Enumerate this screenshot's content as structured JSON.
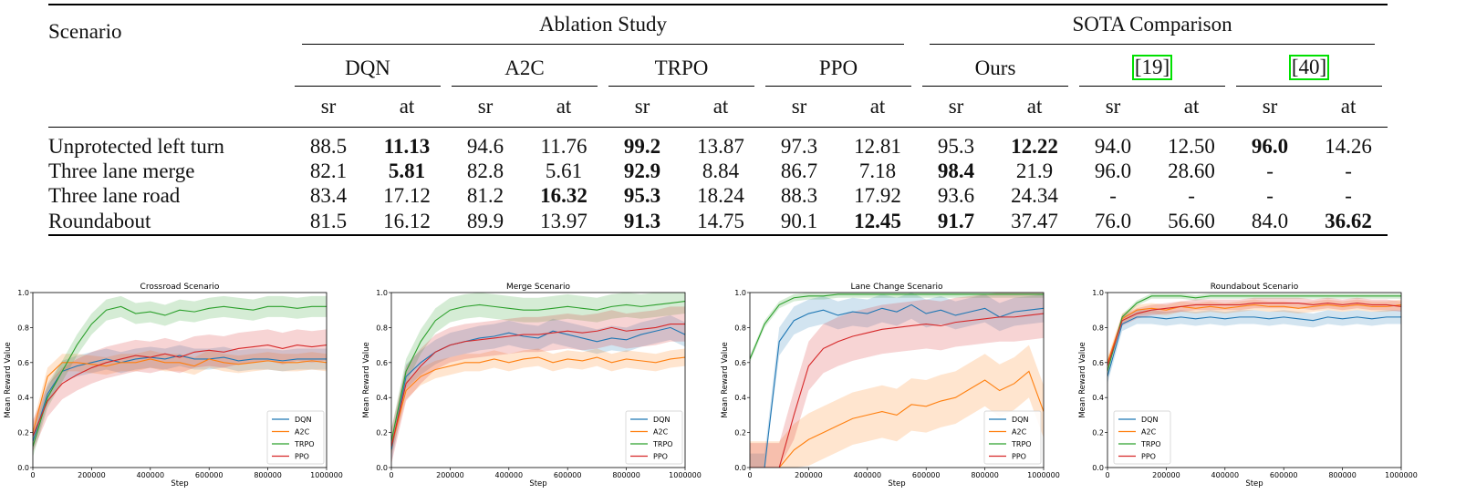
{
  "table": {
    "scenario_header": "Scenario",
    "groups": [
      "Ablation Study",
      "SOTA Comparison"
    ],
    "methods": [
      "DQN",
      "A2C",
      "TRPO",
      "PPO",
      "Ours",
      "[19]",
      "[40]"
    ],
    "subcols": [
      "sr",
      "at"
    ],
    "rows": [
      {
        "name": "Unprotected left turn",
        "cells": [
          "88.5",
          "11.13",
          "94.6",
          "11.76",
          "99.2",
          "13.87",
          "97.3",
          "12.81",
          "95.3",
          "12.22",
          "94.0",
          "12.50",
          "96.0",
          "14.26"
        ]
      },
      {
        "name": "Three lane merge",
        "cells": [
          "82.1",
          "5.81",
          "82.8",
          "5.61",
          "92.9",
          "8.84",
          "86.7",
          "7.18",
          "98.4",
          "21.9",
          "96.0",
          "28.60",
          "-",
          "-"
        ]
      },
      {
        "name": "Three lane road",
        "cells": [
          "83.4",
          "17.12",
          "81.2",
          "16.32",
          "95.3",
          "18.24",
          "88.3",
          "17.92",
          "93.6",
          "24.34",
          "-",
          "-",
          "-",
          "-"
        ]
      },
      {
        "name": "Roundabout",
        "cells": [
          "81.5",
          "16.12",
          "89.9",
          "13.97",
          "91.3",
          "14.75",
          "90.1",
          "12.45",
          "91.7",
          "37.47",
          "76.0",
          "56.60",
          "84.0",
          "36.62"
        ]
      }
    ]
  },
  "chart_data": [
    {
      "type": "line",
      "title": "Crossroad Scenario",
      "xlabel": "Step",
      "ylabel": "Mean Reward Value",
      "xlim": [
        0,
        1000000
      ],
      "ylim": [
        0,
        1.0
      ],
      "xticks": [
        "0",
        "200000",
        "400000",
        "600000",
        "800000",
        "1000000"
      ],
      "yticks": [
        "0.0",
        "0.2",
        "0.4",
        "0.6",
        "0.8",
        "1.0"
      ],
      "x": [
        0,
        50000,
        100000,
        150000,
        200000,
        250000,
        300000,
        350000,
        400000,
        450000,
        500000,
        550000,
        600000,
        650000,
        700000,
        750000,
        800000,
        850000,
        900000,
        950000,
        1000000
      ],
      "legend": "lower-right",
      "series": [
        {
          "name": "DQN",
          "color": "#1f77b4",
          "values": [
            0.15,
            0.42,
            0.55,
            0.58,
            0.6,
            0.62,
            0.6,
            0.62,
            0.63,
            0.62,
            0.64,
            0.62,
            0.62,
            0.63,
            0.61,
            0.62,
            0.62,
            0.61,
            0.62,
            0.62,
            0.62
          ],
          "band": 0.06
        },
        {
          "name": "A2C",
          "color": "#ff7f0e",
          "values": [
            0.2,
            0.52,
            0.6,
            0.6,
            0.59,
            0.58,
            0.6,
            0.6,
            0.62,
            0.6,
            0.6,
            0.58,
            0.62,
            0.6,
            0.59,
            0.6,
            0.61,
            0.6,
            0.6,
            0.61,
            0.6
          ],
          "band": 0.05
        },
        {
          "name": "TRPO",
          "color": "#2ca02c",
          "values": [
            0.12,
            0.4,
            0.55,
            0.7,
            0.82,
            0.9,
            0.92,
            0.88,
            0.89,
            0.87,
            0.9,
            0.89,
            0.91,
            0.92,
            0.91,
            0.9,
            0.92,
            0.92,
            0.91,
            0.92,
            0.92
          ],
          "band": 0.06
        },
        {
          "name": "PPO",
          "color": "#d62728",
          "values": [
            0.18,
            0.38,
            0.48,
            0.53,
            0.57,
            0.6,
            0.62,
            0.64,
            0.63,
            0.65,
            0.63,
            0.66,
            0.67,
            0.66,
            0.68,
            0.69,
            0.7,
            0.68,
            0.7,
            0.69,
            0.7
          ],
          "band": 0.09
        }
      ]
    },
    {
      "type": "line",
      "title": "Merge Scenario",
      "xlabel": "Step",
      "ylabel": "Mean Reward Value",
      "xlim": [
        0,
        1000000
      ],
      "ylim": [
        0,
        1.0
      ],
      "xticks": [
        "0",
        "200000",
        "400000",
        "600000",
        "800000",
        "1000000"
      ],
      "yticks": [
        "0.0",
        "0.2",
        "0.4",
        "0.6",
        "0.8",
        "1.0"
      ],
      "x": [
        0,
        50000,
        100000,
        150000,
        200000,
        250000,
        300000,
        350000,
        400000,
        450000,
        500000,
        550000,
        600000,
        650000,
        700000,
        750000,
        800000,
        850000,
        900000,
        950000,
        1000000
      ],
      "legend": "lower-right",
      "series": [
        {
          "name": "DQN",
          "color": "#1f77b4",
          "values": [
            0.1,
            0.52,
            0.6,
            0.66,
            0.7,
            0.72,
            0.74,
            0.75,
            0.77,
            0.75,
            0.74,
            0.78,
            0.76,
            0.74,
            0.72,
            0.74,
            0.73,
            0.76,
            0.78,
            0.8,
            0.76
          ],
          "band": 0.07
        },
        {
          "name": "A2C",
          "color": "#ff7f0e",
          "values": [
            0.12,
            0.44,
            0.52,
            0.56,
            0.58,
            0.6,
            0.6,
            0.62,
            0.6,
            0.62,
            0.63,
            0.6,
            0.62,
            0.61,
            0.63,
            0.6,
            0.62,
            0.61,
            0.6,
            0.62,
            0.63
          ],
          "band": 0.05
        },
        {
          "name": "TRPO",
          "color": "#2ca02c",
          "values": [
            0.15,
            0.55,
            0.72,
            0.84,
            0.9,
            0.92,
            0.93,
            0.92,
            0.91,
            0.9,
            0.9,
            0.91,
            0.92,
            0.91,
            0.9,
            0.92,
            0.93,
            0.92,
            0.93,
            0.94,
            0.95
          ],
          "band": 0.07
        },
        {
          "name": "PPO",
          "color": "#d62728",
          "values": [
            0.12,
            0.48,
            0.58,
            0.66,
            0.7,
            0.72,
            0.73,
            0.74,
            0.75,
            0.76,
            0.76,
            0.77,
            0.78,
            0.77,
            0.78,
            0.8,
            0.78,
            0.79,
            0.8,
            0.82,
            0.82
          ],
          "band": 0.1
        }
      ]
    },
    {
      "type": "line",
      "title": "Lane Change Scenario",
      "xlabel": "Step",
      "ylabel": "Mean Reward Value",
      "xlim": [
        0,
        1000000
      ],
      "ylim": [
        0,
        1.0
      ],
      "xticks": [
        "0",
        "200000",
        "400000",
        "600000",
        "800000",
        "1000000"
      ],
      "yticks": [
        "0.0",
        "0.2",
        "0.4",
        "0.6",
        "0.8",
        "1.0"
      ],
      "x": [
        0,
        50000,
        100000,
        150000,
        200000,
        250000,
        300000,
        350000,
        400000,
        450000,
        500000,
        550000,
        600000,
        650000,
        700000,
        750000,
        800000,
        850000,
        900000,
        950000,
        1000000
      ],
      "legend": "lower-right",
      "series": [
        {
          "name": "DQN",
          "color": "#1f77b4",
          "values": [
            0.0,
            0.0,
            0.72,
            0.84,
            0.88,
            0.9,
            0.87,
            0.89,
            0.88,
            0.91,
            0.89,
            0.93,
            0.88,
            0.9,
            0.87,
            0.89,
            0.91,
            0.86,
            0.89,
            0.9,
            0.91
          ],
          "band": 0.08
        },
        {
          "name": "A2C",
          "color": "#ff7f0e",
          "values": [
            0.0,
            0.0,
            0.0,
            0.1,
            0.16,
            0.2,
            0.24,
            0.28,
            0.3,
            0.32,
            0.3,
            0.36,
            0.35,
            0.38,
            0.4,
            0.45,
            0.5,
            0.44,
            0.48,
            0.55,
            0.32
          ],
          "band": 0.15
        },
        {
          "name": "TRPO",
          "color": "#2ca02c",
          "values": [
            0.62,
            0.82,
            0.93,
            0.97,
            0.98,
            0.98,
            0.99,
            0.99,
            0.99,
            0.99,
            0.99,
            0.99,
            0.99,
            0.99,
            0.99,
            0.99,
            0.99,
            0.99,
            0.99,
            0.99,
            0.99
          ],
          "band": 0.02
        },
        {
          "name": "PPO",
          "color": "#d62728",
          "values": [
            0.0,
            0.0,
            0.0,
            0.3,
            0.58,
            0.68,
            0.72,
            0.75,
            0.77,
            0.79,
            0.8,
            0.81,
            0.82,
            0.81,
            0.83,
            0.84,
            0.85,
            0.86,
            0.86,
            0.87,
            0.88
          ],
          "band": 0.14
        }
      ]
    },
    {
      "type": "line",
      "title": "Roundabout Scenario",
      "xlabel": "Step",
      "ylabel": "Mean Reward Value",
      "xlim": [
        0,
        1000000
      ],
      "ylim": [
        0,
        1.0
      ],
      "xticks": [
        "0",
        "200000",
        "400000",
        "600000",
        "800000",
        "1000000"
      ],
      "yticks": [
        "0.0",
        "0.2",
        "0.4",
        "0.6",
        "0.8",
        "1.0"
      ],
      "x": [
        0,
        50000,
        100000,
        150000,
        200000,
        250000,
        300000,
        350000,
        400000,
        450000,
        500000,
        550000,
        600000,
        650000,
        700000,
        750000,
        800000,
        850000,
        900000,
        950000,
        1000000
      ],
      "legend": "lower-left",
      "series": [
        {
          "name": "DQN",
          "color": "#1f77b4",
          "values": [
            0.52,
            0.82,
            0.86,
            0.86,
            0.85,
            0.86,
            0.85,
            0.86,
            0.85,
            0.86,
            0.86,
            0.85,
            0.86,
            0.85,
            0.84,
            0.86,
            0.85,
            0.86,
            0.85,
            0.86,
            0.86
          ],
          "band": 0.04
        },
        {
          "name": "A2C",
          "color": "#ff7f0e",
          "values": [
            0.6,
            0.85,
            0.9,
            0.91,
            0.9,
            0.92,
            0.91,
            0.92,
            0.91,
            0.92,
            0.93,
            0.92,
            0.92,
            0.91,
            0.92,
            0.93,
            0.92,
            0.93,
            0.92,
            0.92,
            0.93
          ],
          "band": 0.03
        },
        {
          "name": "TRPO",
          "color": "#2ca02c",
          "values": [
            0.55,
            0.86,
            0.94,
            0.98,
            0.98,
            0.98,
            0.97,
            0.98,
            0.98,
            0.98,
            0.98,
            0.98,
            0.98,
            0.98,
            0.98,
            0.98,
            0.98,
            0.98,
            0.98,
            0.98,
            0.98
          ],
          "band": 0.015
        },
        {
          "name": "PPO",
          "color": "#d62728",
          "values": [
            0.58,
            0.84,
            0.88,
            0.9,
            0.91,
            0.92,
            0.93,
            0.93,
            0.93,
            0.93,
            0.94,
            0.94,
            0.94,
            0.94,
            0.93,
            0.94,
            0.93,
            0.94,
            0.93,
            0.93,
            0.92
          ],
          "band": 0.03
        }
      ]
    }
  ]
}
